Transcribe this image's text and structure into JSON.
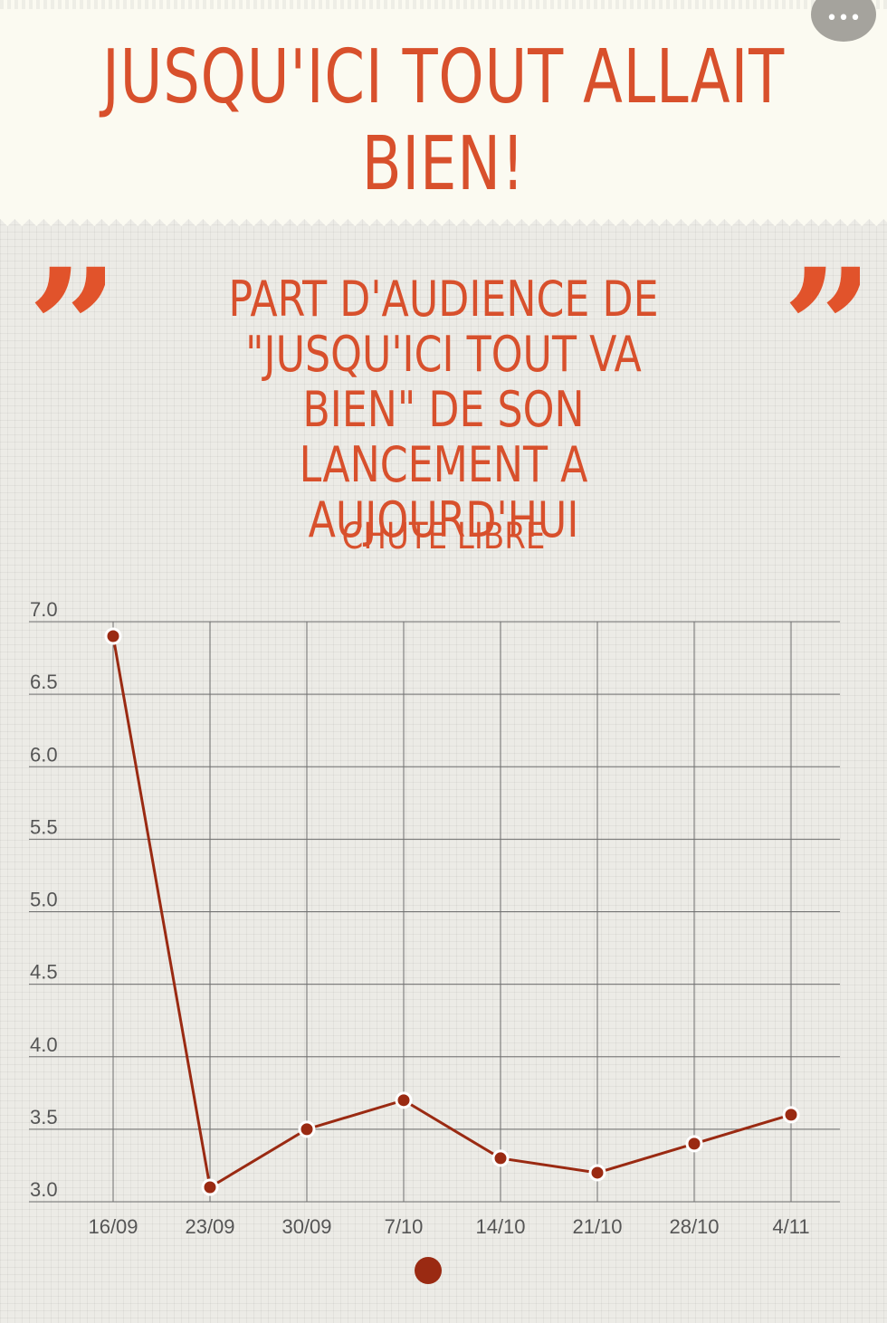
{
  "header": {
    "title": "JUSQU'ICI TOUT ALLAIT BIEN!",
    "menu_icon": "more-dots-icon",
    "menu_glyph": "•••"
  },
  "quote_glyph": "”",
  "subtitle": "PART D'AUDIENCE DE \"JUSQU'ICI TOUT VA BIEN\" DE SON LANCEMENT A AUJOURD'HUI",
  "caption": "CHUTE LIBRE",
  "colors": {
    "accent": "#d8502c",
    "series": "#9a2a12",
    "grid": "#6e6e6e"
  },
  "chart_data": {
    "type": "line",
    "title": "",
    "xlabel": "",
    "ylabel": "",
    "categories": [
      "16/09",
      "23/09",
      "30/09",
      "7/10",
      "14/10",
      "21/10",
      "28/10",
      "4/11"
    ],
    "values": [
      6.9,
      3.1,
      3.5,
      3.7,
      3.3,
      3.2,
      3.4,
      3.6
    ],
    "ylim": [
      3.0,
      7.0
    ],
    "yticks": [
      "3.0",
      "3.5",
      "4.0",
      "4.5",
      "5.0",
      "5.5",
      "6.0",
      "6.5",
      "7.0"
    ],
    "grid": true,
    "legend": "none"
  }
}
